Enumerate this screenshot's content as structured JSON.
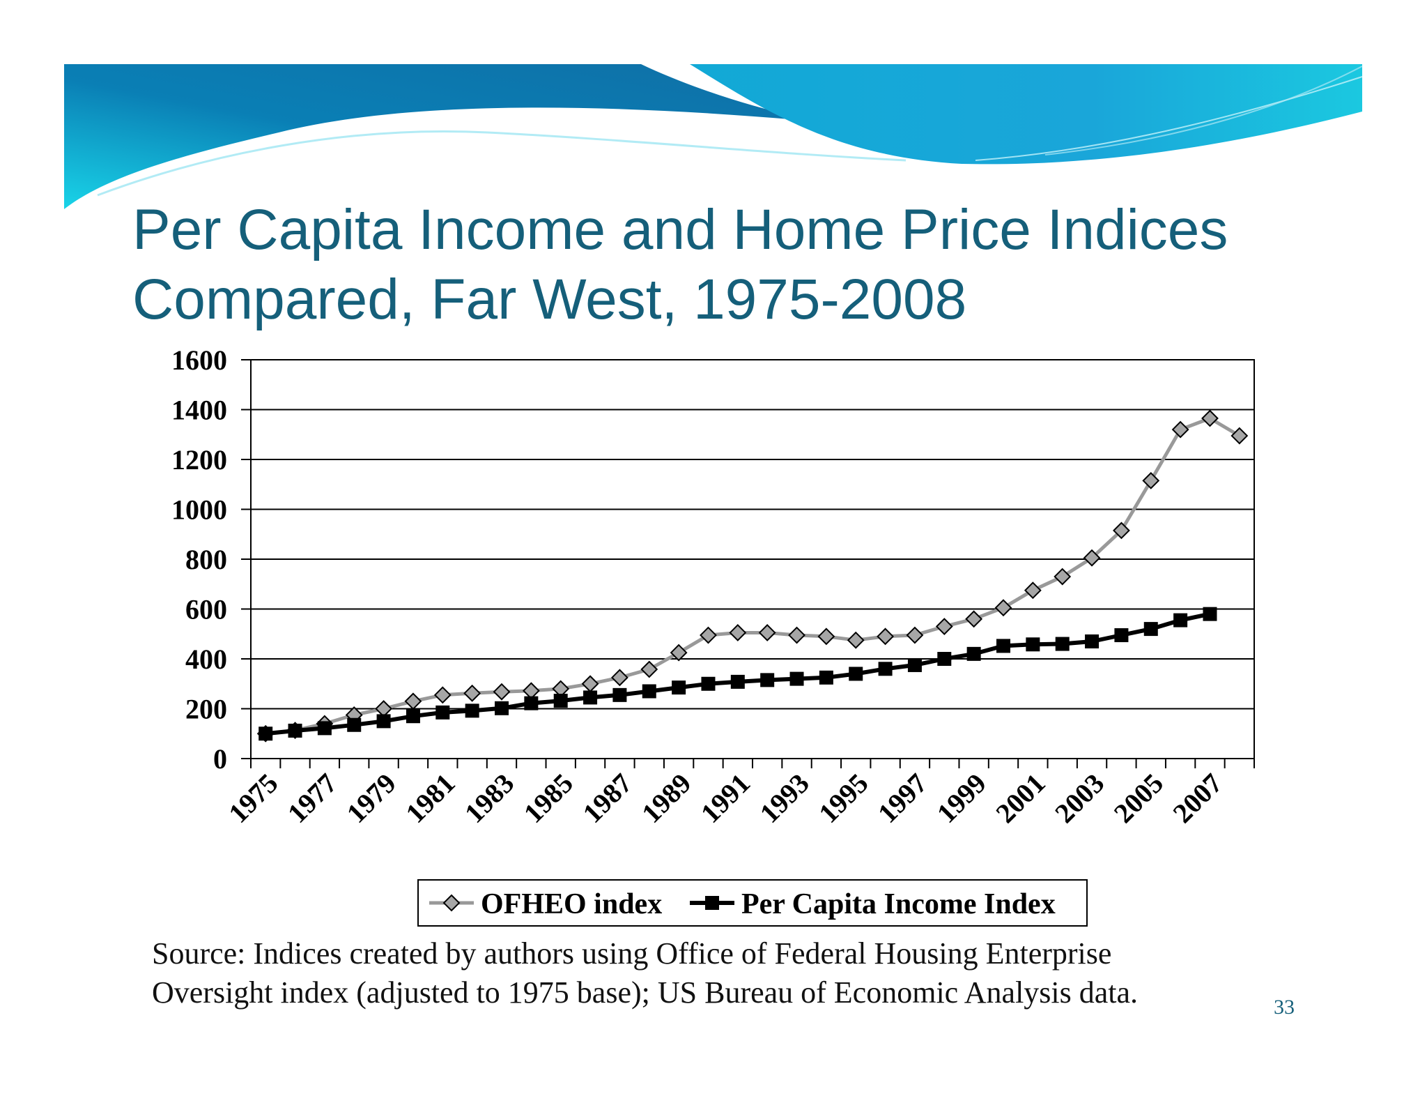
{
  "slide": {
    "title_lines": [
      "Per Capita Income and Home Price Indices",
      "Compared, Far West, 1975-2008"
    ],
    "source_lines": [
      "Source: Indices created by authors using Office of Federal Housing Enterprise",
      "Oversight index (adjusted to 1975 base); US Bureau of Economic Analysis data."
    ],
    "page_number": "33",
    "title_color": "#155f7a"
  },
  "chart_data": {
    "type": "line",
    "title": "",
    "xlabel": "",
    "ylabel": "",
    "ylim": [
      0,
      1600
    ],
    "yticks": [
      0,
      200,
      400,
      600,
      800,
      1000,
      1200,
      1400,
      1600
    ],
    "x": [
      1975,
      1976,
      1977,
      1978,
      1979,
      1980,
      1981,
      1982,
      1983,
      1984,
      1985,
      1986,
      1987,
      1988,
      1989,
      1990,
      1991,
      1992,
      1993,
      1994,
      1995,
      1996,
      1997,
      1998,
      1999,
      2000,
      2001,
      2002,
      2003,
      2004,
      2005,
      2006,
      2007,
      2008
    ],
    "xtick_labels": [
      "1975",
      "1977",
      "1979",
      "1981",
      "1983",
      "1985",
      "1987",
      "1989",
      "1991",
      "1993",
      "1995",
      "1997",
      "1999",
      "2001",
      "2003",
      "2005",
      "2007"
    ],
    "grid": "horizontal",
    "legend_position": "bottom",
    "series": [
      {
        "name": "OFHEO index",
        "marker": "diamond",
        "color": "#999999",
        "values": [
          100,
          113,
          140,
          175,
          200,
          230,
          255,
          262,
          268,
          272,
          280,
          300,
          325,
          358,
          425,
          495,
          505,
          505,
          495,
          490,
          475,
          490,
          495,
          530,
          560,
          605,
          675,
          730,
          805,
          915,
          1115,
          1320,
          1365,
          1295
        ]
      },
      {
        "name": "Per Capita Income Index",
        "marker": "square",
        "color": "#000000",
        "values": [
          100,
          112,
          122,
          135,
          150,
          170,
          185,
          192,
          202,
          222,
          232,
          245,
          255,
          270,
          285,
          300,
          308,
          315,
          320,
          325,
          340,
          360,
          375,
          400,
          420,
          452,
          458,
          460,
          470,
          495,
          520,
          555,
          580,
          null
        ]
      }
    ]
  }
}
